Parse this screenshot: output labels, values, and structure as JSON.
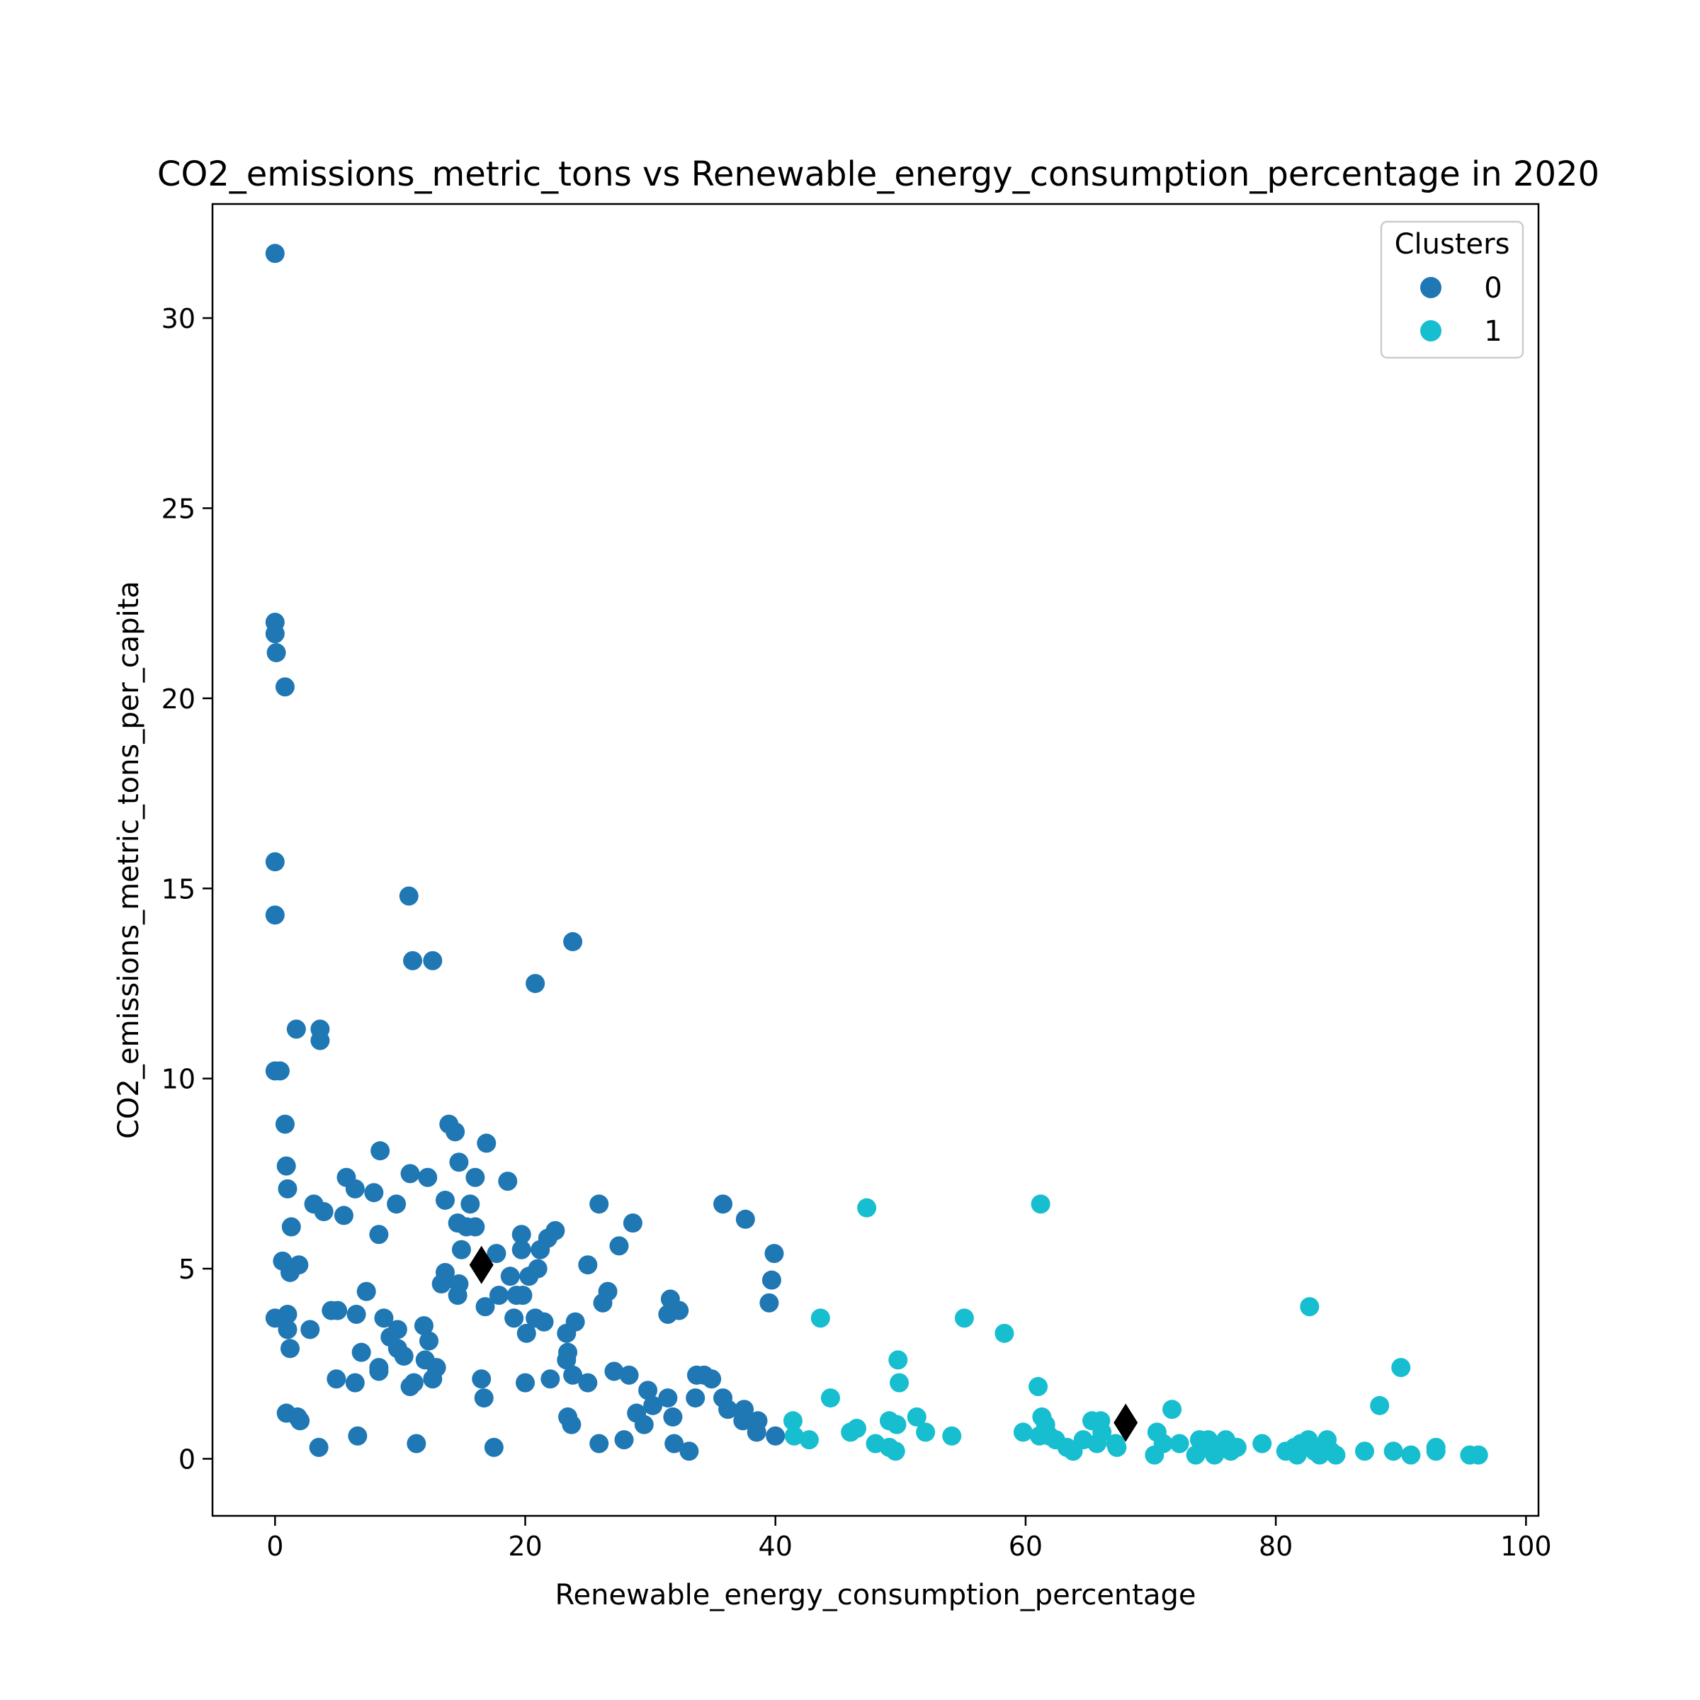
{
  "chart_data": {
    "type": "scatter",
    "title": "CO2_emissions_metric_tons vs Renewable_energy_consumption_percentage in 2020",
    "xlabel": "Renewable_energy_consumption_percentage",
    "ylabel": "CO2_emissions_metric_tons_per_capita",
    "xlim": [
      -5,
      101
    ],
    "ylim": [
      -1.5,
      33
    ],
    "x_ticks": [
      0,
      20,
      40,
      60,
      80,
      100
    ],
    "y_ticks": [
      0,
      5,
      10,
      15,
      20,
      25,
      30
    ],
    "grid": false,
    "legend": {
      "title": "Clusters",
      "placement": "top-right",
      "entries": [
        {
          "label": "0",
          "color": "#1f77b4"
        },
        {
          "label": "1",
          "color": "#17becf"
        }
      ]
    },
    "series": [
      {
        "name": "0",
        "color": "#1f77b4",
        "points": [
          [
            0.0,
            31.7
          ],
          [
            0.0,
            22.0
          ],
          [
            0.0,
            21.7
          ],
          [
            0.1,
            21.2
          ],
          [
            0.8,
            20.3
          ],
          [
            0.0,
            15.7
          ],
          [
            0.0,
            14.3
          ],
          [
            0.0,
            10.2
          ],
          [
            0.4,
            10.2
          ],
          [
            0.8,
            8.8
          ],
          [
            1.7,
            11.3
          ],
          [
            3.6,
            11.3
          ],
          [
            3.6,
            11.0
          ],
          [
            10.7,
            14.8
          ],
          [
            11.0,
            13.1
          ],
          [
            12.6,
            13.1
          ],
          [
            23.8,
            13.6
          ],
          [
            20.8,
            12.5
          ],
          [
            0.9,
            7.7
          ],
          [
            1.0,
            7.1
          ],
          [
            1.3,
            6.1
          ],
          [
            3.1,
            6.7
          ],
          [
            3.9,
            6.5
          ],
          [
            0.6,
            5.2
          ],
          [
            1.2,
            4.9
          ],
          [
            1.9,
            5.1
          ],
          [
            5.7,
            7.4
          ],
          [
            6.4,
            7.1
          ],
          [
            5.5,
            6.4
          ],
          [
            8.4,
            8.1
          ],
          [
            7.9,
            7.0
          ],
          [
            8.3,
            5.9
          ],
          [
            10.8,
            7.5
          ],
          [
            12.2,
            7.4
          ],
          [
            9.7,
            6.7
          ],
          [
            13.9,
            8.8
          ],
          [
            14.4,
            8.6
          ],
          [
            16.9,
            8.3
          ],
          [
            14.7,
            7.8
          ],
          [
            16.0,
            7.4
          ],
          [
            18.6,
            7.3
          ],
          [
            13.6,
            6.8
          ],
          [
            15.6,
            6.7
          ],
          [
            14.6,
            6.2
          ],
          [
            15.3,
            6.1
          ],
          [
            16.0,
            6.1
          ],
          [
            14.9,
            5.5
          ],
          [
            17.7,
            5.4
          ],
          [
            13.6,
            4.9
          ],
          [
            13.3,
            4.6
          ],
          [
            14.7,
            4.6
          ],
          [
            14.6,
            4.3
          ],
          [
            16.8,
            4.0
          ],
          [
            17.9,
            4.3
          ],
          [
            18.8,
            4.8
          ],
          [
            19.3,
            4.3
          ],
          [
            19.8,
            4.3
          ],
          [
            19.7,
            5.9
          ],
          [
            19.7,
            5.5
          ],
          [
            20.3,
            4.8
          ],
          [
            20.1,
            3.3
          ],
          [
            21.0,
            5.0
          ],
          [
            21.2,
            5.5
          ],
          [
            21.8,
            5.8
          ],
          [
            22.4,
            6.0
          ],
          [
            19.1,
            3.7
          ],
          [
            20.8,
            3.7
          ],
          [
            21.5,
            3.6
          ],
          [
            23.3,
            3.3
          ],
          [
            24.0,
            3.6
          ],
          [
            0.0,
            3.7
          ],
          [
            1.0,
            3.8
          ],
          [
            1.0,
            3.4
          ],
          [
            1.2,
            2.9
          ],
          [
            2.8,
            3.4
          ],
          [
            4.5,
            3.9
          ],
          [
            5.0,
            3.9
          ],
          [
            6.5,
            3.8
          ],
          [
            7.3,
            4.4
          ],
          [
            8.7,
            3.7
          ],
          [
            9.2,
            3.2
          ],
          [
            9.8,
            3.4
          ],
          [
            9.8,
            2.9
          ],
          [
            10.3,
            2.7
          ],
          [
            8.3,
            2.4
          ],
          [
            8.3,
            2.3
          ],
          [
            6.9,
            2.8
          ],
          [
            6.4,
            2.0
          ],
          [
            4.9,
            2.1
          ],
          [
            11.9,
            3.5
          ],
          [
            12.3,
            3.1
          ],
          [
            12.0,
            2.6
          ],
          [
            12.9,
            2.4
          ],
          [
            12.6,
            2.1
          ],
          [
            11.1,
            2.0
          ],
          [
            10.8,
            1.9
          ],
          [
            0.9,
            1.2
          ],
          [
            1.8,
            1.1
          ],
          [
            2.0,
            1.0
          ],
          [
            3.5,
            0.3
          ],
          [
            6.6,
            0.6
          ],
          [
            11.3,
            0.4
          ],
          [
            17.5,
            0.3
          ],
          [
            16.5,
            2.1
          ],
          [
            16.7,
            1.6
          ],
          [
            20.0,
            2.0
          ],
          [
            22.0,
            2.1
          ],
          [
            23.3,
            2.6
          ],
          [
            23.4,
            2.8
          ],
          [
            23.8,
            2.2
          ],
          [
            25.0,
            2.0
          ],
          [
            23.4,
            1.1
          ],
          [
            23.7,
            0.9
          ],
          [
            25.9,
            6.7
          ],
          [
            28.6,
            6.2
          ],
          [
            27.5,
            5.6
          ],
          [
            25.0,
            5.1
          ],
          [
            26.6,
            4.4
          ],
          [
            26.2,
            4.1
          ],
          [
            27.1,
            2.3
          ],
          [
            28.3,
            2.2
          ],
          [
            29.8,
            1.8
          ],
          [
            28.9,
            1.2
          ],
          [
            30.2,
            1.4
          ],
          [
            31.4,
            1.6
          ],
          [
            29.5,
            0.9
          ],
          [
            31.4,
            3.8
          ],
          [
            31.6,
            4.2
          ],
          [
            32.3,
            3.9
          ],
          [
            33.7,
            2.2
          ],
          [
            34.3,
            2.2
          ],
          [
            34.9,
            2.1
          ],
          [
            33.6,
            1.6
          ],
          [
            35.8,
            1.6
          ],
          [
            36.2,
            1.3
          ],
          [
            37.5,
            1.3
          ],
          [
            37.4,
            1.0
          ],
          [
            38.6,
            1.0
          ],
          [
            38.5,
            0.7
          ],
          [
            40.0,
            0.6
          ],
          [
            31.8,
            1.1
          ],
          [
            31.9,
            0.4
          ],
          [
            33.1,
            0.2
          ],
          [
            25.9,
            0.4
          ],
          [
            27.9,
            0.5
          ],
          [
            35.8,
            6.7
          ],
          [
            37.6,
            6.3
          ],
          [
            39.9,
            5.4
          ],
          [
            39.7,
            4.7
          ],
          [
            39.5,
            4.1
          ]
        ]
      },
      {
        "name": "1",
        "color": "#17becf",
        "points": [
          [
            47.3,
            6.6
          ],
          [
            61.2,
            6.7
          ],
          [
            43.6,
            3.7
          ],
          [
            55.1,
            3.7
          ],
          [
            58.3,
            3.3
          ],
          [
            82.7,
            4.0
          ],
          [
            90.0,
            2.4
          ],
          [
            88.3,
            1.4
          ],
          [
            49.8,
            2.6
          ],
          [
            49.9,
            2.0
          ],
          [
            44.4,
            1.6
          ],
          [
            61.0,
            1.9
          ],
          [
            71.7,
            1.3
          ],
          [
            41.4,
            1.0
          ],
          [
            41.5,
            0.6
          ],
          [
            42.7,
            0.5
          ],
          [
            46.0,
            0.7
          ],
          [
            46.5,
            0.8
          ],
          [
            48.0,
            0.4
          ],
          [
            49.1,
            1.0
          ],
          [
            49.7,
            0.9
          ],
          [
            49.1,
            0.3
          ],
          [
            49.6,
            0.2
          ],
          [
            51.3,
            1.1
          ],
          [
            52.0,
            0.7
          ],
          [
            54.1,
            0.6
          ],
          [
            59.8,
            0.7
          ],
          [
            61.1,
            0.6
          ],
          [
            61.3,
            1.1
          ],
          [
            61.6,
            0.9
          ],
          [
            61.9,
            0.6
          ],
          [
            62.4,
            0.5
          ],
          [
            63.3,
            0.3
          ],
          [
            63.8,
            0.2
          ],
          [
            64.6,
            0.5
          ],
          [
            65.3,
            1.0
          ],
          [
            66.0,
            1.0
          ],
          [
            66.1,
            0.7
          ],
          [
            65.7,
            0.4
          ],
          [
            67.2,
            0.4
          ],
          [
            67.3,
            0.3
          ],
          [
            70.3,
            0.1
          ],
          [
            70.5,
            0.7
          ],
          [
            71.0,
            0.4
          ],
          [
            72.3,
            0.4
          ],
          [
            73.6,
            0.1
          ],
          [
            73.9,
            0.5
          ],
          [
            74.6,
            0.5
          ],
          [
            74.4,
            0.3
          ],
          [
            75.1,
            0.1
          ],
          [
            75.4,
            0.3
          ],
          [
            76.0,
            0.5
          ],
          [
            76.4,
            0.2
          ],
          [
            76.9,
            0.3
          ],
          [
            78.9,
            0.4
          ],
          [
            80.8,
            0.2
          ],
          [
            81.5,
            0.3
          ],
          [
            81.7,
            0.1
          ],
          [
            82.0,
            0.4
          ],
          [
            82.6,
            0.5
          ],
          [
            83.1,
            0.2
          ],
          [
            83.5,
            0.1
          ],
          [
            84.1,
            0.5
          ],
          [
            84.4,
            0.2
          ],
          [
            84.8,
            0.1
          ],
          [
            87.1,
            0.2
          ],
          [
            89.4,
            0.2
          ],
          [
            90.8,
            0.1
          ],
          [
            92.8,
            0.2
          ],
          [
            92.8,
            0.3
          ],
          [
            95.5,
            0.1
          ],
          [
            96.2,
            0.1
          ]
        ]
      }
    ],
    "centroids": {
      "marker": "diamond",
      "color": "#000000",
      "points": [
        [
          16.5,
          5.1
        ],
        [
          68.0,
          0.95
        ]
      ]
    }
  }
}
